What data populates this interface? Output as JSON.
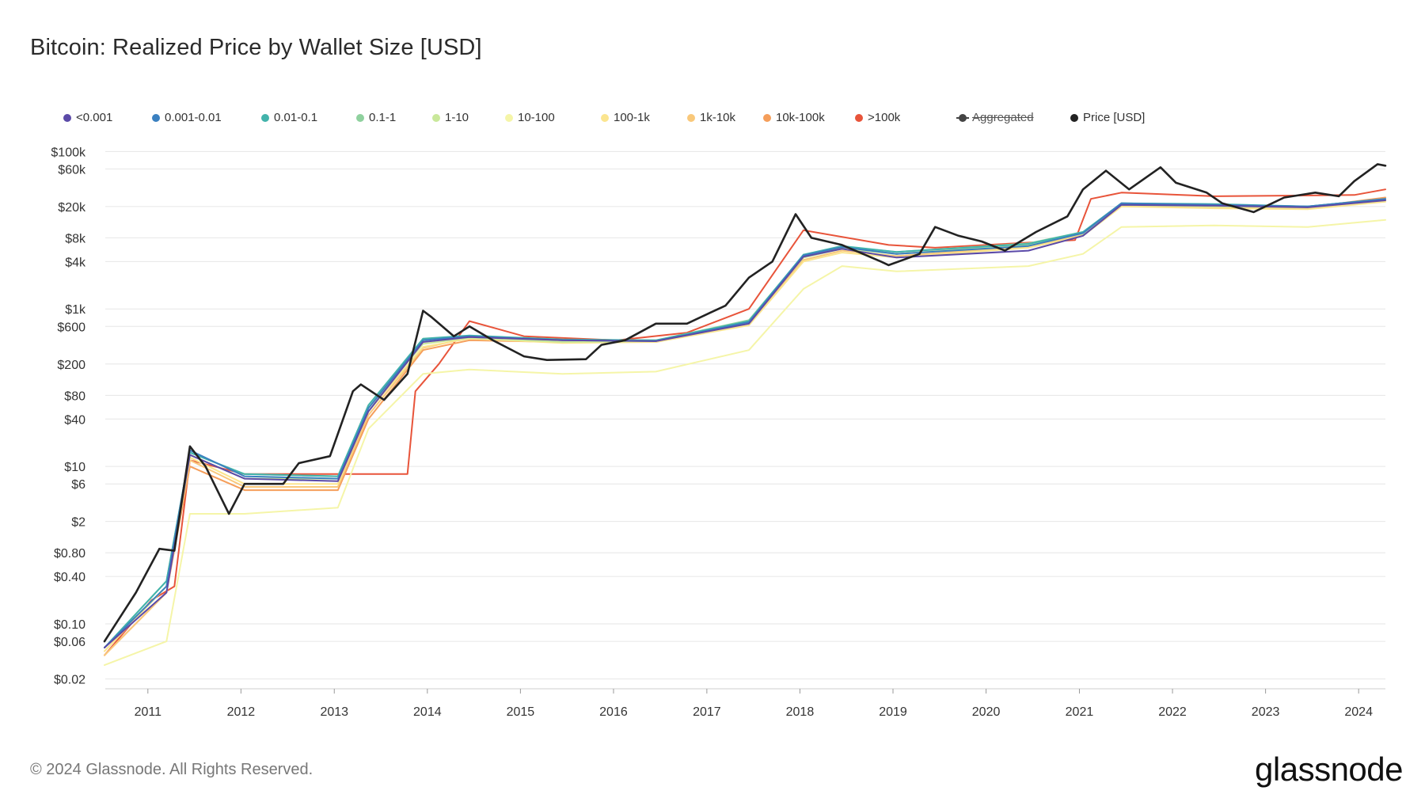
{
  "page": {
    "title": "Bitcoin: Realized Price by Wallet Size [USD]"
  },
  "footer": {
    "copyright": "© 2024 Glassnode. All Rights Reserved.",
    "brand": "glassnode"
  },
  "legend": [
    {
      "label": "<0.001",
      "color": "#5b4aa8",
      "icon": "dot-icon"
    },
    {
      "label": "0.001-0.01",
      "color": "#3a80c0",
      "icon": "dot-icon"
    },
    {
      "label": "0.01-0.1",
      "color": "#42b3ab",
      "icon": "dot-icon"
    },
    {
      "label": "0.1-1",
      "color": "#8fd19e",
      "icon": "dot-icon"
    },
    {
      "label": "1-10",
      "color": "#c9e89a",
      "icon": "dot-icon"
    },
    {
      "label": "10-100",
      "color": "#f5f5a8",
      "icon": "dot-icon"
    },
    {
      "label": "100-1k",
      "color": "#fbe58f",
      "icon": "dot-icon"
    },
    {
      "label": "1k-10k",
      "color": "#f9c87a",
      "icon": "dot-icon"
    },
    {
      "label": "10k-100k",
      "color": "#f59e5a",
      "icon": "dot-icon"
    },
    {
      "label": ">100k",
      "color": "#e8543a",
      "icon": "dot-icon"
    },
    {
      "label": "Aggregated",
      "color": "#444444",
      "icon": "line-dot-icon",
      "disabled": true
    },
    {
      "label": "Price [USD]",
      "color": "#222222",
      "icon": "dot-icon"
    }
  ],
  "chart_data": {
    "type": "line",
    "title": "Bitcoin: Realized Price by Wallet Size [USD]",
    "xlabel": "",
    "ylabel": "",
    "y_scale": "log",
    "ylim": [
      0.015,
      130000
    ],
    "xlim": [
      "2010-07-18",
      "2024-04-15"
    ],
    "grid": true,
    "legend_position": "top",
    "x_ticks": [
      "2011",
      "2012",
      "2013",
      "2014",
      "2015",
      "2016",
      "2017",
      "2018",
      "2019",
      "2020",
      "2021",
      "2022",
      "2023",
      "2024"
    ],
    "y_ticks": [
      {
        "value": 0.02,
        "label": "$0.02"
      },
      {
        "value": 0.06,
        "label": "$0.06"
      },
      {
        "value": 0.1,
        "label": "$0.10"
      },
      {
        "value": 0.4,
        "label": "$0.40"
      },
      {
        "value": 0.8,
        "label": "$0.80"
      },
      {
        "value": 2,
        "label": "$2"
      },
      {
        "value": 6,
        "label": "$6"
      },
      {
        "value": 10,
        "label": "$10"
      },
      {
        "value": 40,
        "label": "$40"
      },
      {
        "value": 80,
        "label": "$80"
      },
      {
        "value": 200,
        "label": "$200"
      },
      {
        "value": 600,
        "label": "$600"
      },
      {
        "value": 1000,
        "label": "$1k"
      },
      {
        "value": 4000,
        "label": "$4k"
      },
      {
        "value": 8000,
        "label": "$8k"
      },
      {
        "value": 20000,
        "label": "$20k"
      },
      {
        "value": 60000,
        "label": "$60k"
      },
      {
        "value": 100000,
        "label": "$100k"
      }
    ],
    "series": [
      {
        "name": "Price [USD]",
        "color": "#222222",
        "x": [
          "2010-07",
          "2010-11",
          "2011-02",
          "2011-04",
          "2011-06",
          "2011-08",
          "2011-11",
          "2012-01",
          "2012-06",
          "2012-08",
          "2012-12",
          "2013-03",
          "2013-04",
          "2013-07",
          "2013-10",
          "2013-12",
          "2014-01",
          "2014-04",
          "2014-06",
          "2014-09",
          "2015-01",
          "2015-04",
          "2015-09",
          "2015-11",
          "2016-02",
          "2016-06",
          "2016-10",
          "2017-01",
          "2017-03",
          "2017-06",
          "2017-09",
          "2017-12",
          "2018-02",
          "2018-06",
          "2018-11",
          "2018-12",
          "2019-04",
          "2019-06",
          "2019-09",
          "2019-12",
          "2020-03",
          "2020-07",
          "2020-11",
          "2021-01",
          "2021-04",
          "2021-07",
          "2021-11",
          "2022-01",
          "2022-05",
          "2022-07",
          "2022-11",
          "2023-03",
          "2023-07",
          "2023-10",
          "2023-12",
          "2024-03",
          "2024-04"
        ],
        "values": [
          0.06,
          0.25,
          0.9,
          0.85,
          18,
          10,
          2.5,
          6,
          6,
          11,
          13.5,
          90,
          110,
          70,
          150,
          950,
          800,
          450,
          600,
          400,
          250,
          225,
          230,
          350,
          400,
          650,
          650,
          900,
          1100,
          2500,
          4000,
          16000,
          8000,
          6500,
          4000,
          3600,
          5000,
          11000,
          8500,
          7200,
          5500,
          9500,
          15000,
          33000,
          57000,
          33000,
          63000,
          40000,
          30000,
          22000,
          17000,
          26000,
          30000,
          27000,
          42000,
          69000,
          66000
        ]
      },
      {
        "name": ">100k",
        "color": "#e8543a",
        "x": [
          "2010-07",
          "2011-01",
          "2011-04",
          "2011-06",
          "2012-01",
          "2012-09",
          "2013-10",
          "2013-11",
          "2014-02",
          "2014-06",
          "2015-01",
          "2016-01",
          "2016-10",
          "2017-06",
          "2018-01",
          "2018-12",
          "2019-06",
          "2020-12",
          "2021-02",
          "2021-06",
          "2022-06",
          "2023-12",
          "2024-04"
        ],
        "values": [
          0.04,
          0.2,
          0.3,
          12,
          8,
          8,
          8,
          90,
          200,
          700,
          450,
          400,
          500,
          1000,
          10000,
          6500,
          6000,
          7500,
          25000,
          30000,
          27000,
          28000,
          33000
        ]
      },
      {
        "name": "10k-100k",
        "color": "#f59e5a",
        "x": [
          "2010-07",
          "2011-03",
          "2011-06",
          "2012-01",
          "2013-01",
          "2013-05",
          "2013-12",
          "2014-06",
          "2015-06",
          "2016-06",
          "2017-06",
          "2018-01",
          "2018-06",
          "2019-01",
          "2020-06",
          "2021-01",
          "2021-06",
          "2022-06",
          "2023-06",
          "2024-04"
        ],
        "values": [
          0.04,
          0.25,
          10,
          5,
          5,
          40,
          300,
          400,
          380,
          380,
          700,
          4500,
          6000,
          5000,
          6500,
          9000,
          22000,
          20000,
          19500,
          26000
        ]
      },
      {
        "name": "1k-10k",
        "color": "#f9c87a",
        "x": [
          "2010-07",
          "2011-03",
          "2011-06",
          "2012-01",
          "2013-01",
          "2013-05",
          "2013-12",
          "2014-06",
          "2015-06",
          "2016-06",
          "2017-06",
          "2018-01",
          "2018-06",
          "2019-01",
          "2020-06",
          "2021-01",
          "2021-06",
          "2022-06",
          "2023-06",
          "2024-04"
        ],
        "values": [
          0.04,
          0.25,
          12,
          5.5,
          5.5,
          45,
          320,
          430,
          380,
          380,
          650,
          4200,
          5500,
          4700,
          6200,
          8800,
          21000,
          19500,
          19000,
          24000
        ]
      },
      {
        "name": "100-1k",
        "color": "#fbe58f",
        "x": [
          "2010-07",
          "2011-03",
          "2011-06",
          "2012-01",
          "2013-01",
          "2013-05",
          "2013-12",
          "2014-06",
          "2015-06",
          "2016-06",
          "2017-06",
          "2018-01",
          "2018-06",
          "2019-01",
          "2020-06",
          "2021-01",
          "2021-06",
          "2022-06",
          "2023-06",
          "2024-04"
        ],
        "values": [
          0.045,
          0.3,
          13,
          6,
          6,
          50,
          330,
          420,
          370,
          380,
          620,
          4000,
          5200,
          4500,
          6000,
          8500,
          20000,
          19000,
          18500,
          23000
        ]
      },
      {
        "name": "10-100",
        "color": "#f5f5a8",
        "x": [
          "2010-07",
          "2011-03",
          "2011-06",
          "2012-01",
          "2013-01",
          "2013-05",
          "2013-12",
          "2014-06",
          "2015-06",
          "2016-06",
          "2017-06",
          "2018-01",
          "2018-06",
          "2019-01",
          "2020-06",
          "2021-01",
          "2021-06",
          "2022-06",
          "2023-06",
          "2024-04"
        ],
        "values": [
          0.03,
          0.06,
          2.5,
          2.5,
          3,
          30,
          150,
          170,
          150,
          160,
          300,
          1800,
          3500,
          3000,
          3500,
          5000,
          11000,
          11500,
          11000,
          13500
        ]
      },
      {
        "name": "1-10",
        "color": "#c9e89a",
        "x": [
          "2010-07",
          "2011-03",
          "2011-06",
          "2012-01",
          "2013-01",
          "2013-05",
          "2013-12",
          "2014-06",
          "2015-06",
          "2016-06",
          "2017-06",
          "2018-01",
          "2018-06",
          "2019-01",
          "2020-06",
          "2021-01",
          "2021-06",
          "2022-06",
          "2023-06",
          "2024-04"
        ],
        "values": [
          0.05,
          0.3,
          14,
          7,
          7,
          55,
          360,
          430,
          380,
          390,
          700,
          4500,
          5800,
          5000,
          6500,
          9000,
          21000,
          20000,
          19500,
          24000
        ]
      },
      {
        "name": "0.1-1",
        "color": "#8fd19e",
        "x": [
          "2010-07",
          "2011-03",
          "2011-06",
          "2012-01",
          "2013-01",
          "2013-05",
          "2013-12",
          "2014-06",
          "2015-06",
          "2016-06",
          "2017-06",
          "2018-01",
          "2018-06",
          "2019-01",
          "2020-06",
          "2021-01",
          "2021-06",
          "2022-06",
          "2023-06",
          "2024-04"
        ],
        "values": [
          0.05,
          0.35,
          15,
          8,
          7.5,
          60,
          400,
          450,
          400,
          400,
          720,
          4800,
          6200,
          5300,
          6800,
          9500,
          22000,
          21000,
          20000,
          25000
        ]
      },
      {
        "name": "0.01-0.1",
        "color": "#42b3ab",
        "x": [
          "2010-07",
          "2011-03",
          "2011-06",
          "2012-01",
          "2013-01",
          "2013-05",
          "2013-12",
          "2014-06",
          "2015-06",
          "2016-06",
          "2017-06",
          "2018-01",
          "2018-06",
          "2019-01",
          "2020-06",
          "2021-01",
          "2021-06",
          "2022-06",
          "2023-06",
          "2024-04"
        ],
        "values": [
          0.05,
          0.35,
          15,
          8,
          7.5,
          60,
          420,
          460,
          410,
          400,
          700,
          4900,
          6300,
          5300,
          6700,
          9500,
          22000,
          21500,
          20000,
          25000
        ]
      },
      {
        "name": "0.001-0.01",
        "color": "#3a80c0",
        "x": [
          "2010-07",
          "2011-03",
          "2011-06",
          "2012-01",
          "2013-01",
          "2013-05",
          "2013-12",
          "2014-06",
          "2015-06",
          "2016-06",
          "2017-06",
          "2018-01",
          "2018-06",
          "2019-01",
          "2020-06",
          "2021-01",
          "2021-06",
          "2022-06",
          "2023-06",
          "2024-04"
        ],
        "values": [
          0.05,
          0.3,
          16,
          7.5,
          7,
          55,
          400,
          450,
          400,
          390,
          680,
          4800,
          6100,
          5000,
          6300,
          9200,
          22000,
          21000,
          20000,
          25000
        ]
      },
      {
        "name": "<0.001",
        "color": "#5b4aa8",
        "x": [
          "2010-07",
          "2011-03",
          "2011-06",
          "2012-01",
          "2013-01",
          "2013-05",
          "2013-12",
          "2014-06",
          "2015-06",
          "2016-06",
          "2017-06",
          "2018-01",
          "2018-06",
          "2019-01",
          "2020-06",
          "2021-01",
          "2021-06",
          "2022-06",
          "2023-06",
          "2024-04"
        ],
        "values": [
          0.05,
          0.25,
          14,
          7,
          6.5,
          50,
          380,
          440,
          400,
          390,
          650,
          4600,
          5800,
          4500,
          5500,
          8500,
          21000,
          20500,
          19500,
          24000
        ]
      }
    ]
  }
}
